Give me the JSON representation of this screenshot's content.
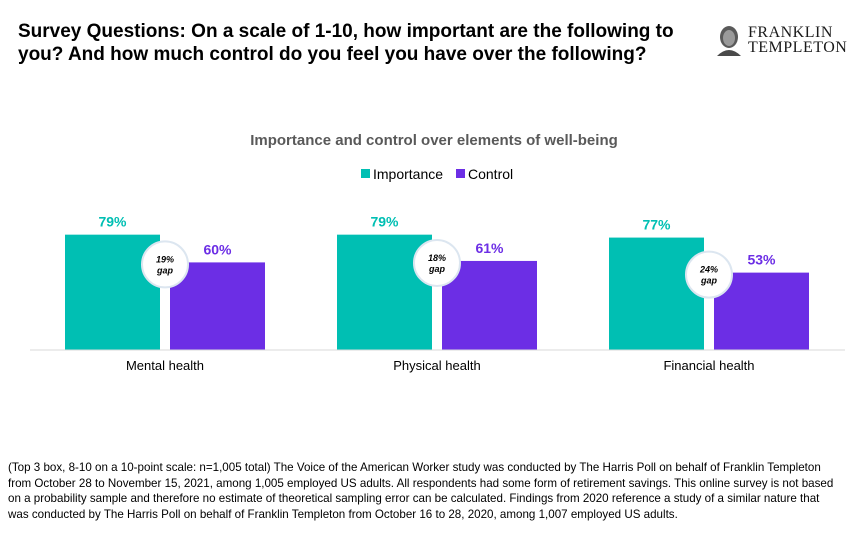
{
  "headline": "Survey Questions: On a scale of 1-10, how important are the following to you? And how much control do you feel you have over the following?",
  "logo": {
    "line1": "FRANKLIN",
    "line2": "TEMPLETON",
    "icon": "franklin-portrait-logo"
  },
  "colors": {
    "importance": "#00BFB3",
    "control": "#6C2EE5",
    "gap_circle_border": "#DCE6F0",
    "axis": "#D9D9D9"
  },
  "chart_data": {
    "type": "bar",
    "title": "Importance and control over elements of well-being",
    "categories": [
      "Mental health",
      "Physical health",
      "Financial health"
    ],
    "series": [
      {
        "name": "Importance",
        "values": [
          79,
          79,
          77
        ],
        "labels": [
          "79%",
          "79%",
          "77%"
        ]
      },
      {
        "name": "Control",
        "values": [
          60,
          61,
          53
        ],
        "labels": [
          "60%",
          "61%",
          "53%"
        ]
      }
    ],
    "gap_labels": [
      [
        "19%",
        "gap"
      ],
      [
        "18%",
        "gap"
      ],
      [
        "24%",
        "gap"
      ]
    ],
    "ylim": [
      0,
      100
    ],
    "legend": "top-center",
    "grid": false
  },
  "footnote": "(Top 3 box, 8-10 on a 10-point scale: n=1,005 total) The Voice of the American Worker study was conducted by The Harris Poll on behalf of Franklin Templeton from October 28 to November 15, 2021, among 1,005 employed US adults. All respondents had some form of retirement savings. This online survey is not based on a probability sample and therefore no estimate of theoretical sampling error can be calculated. Findings from 2020 reference a study of a similar nature that was conducted by The Harris Poll on behalf of Franklin Templeton from October 16 to 28, 2020, among 1,007 employed US adults."
}
